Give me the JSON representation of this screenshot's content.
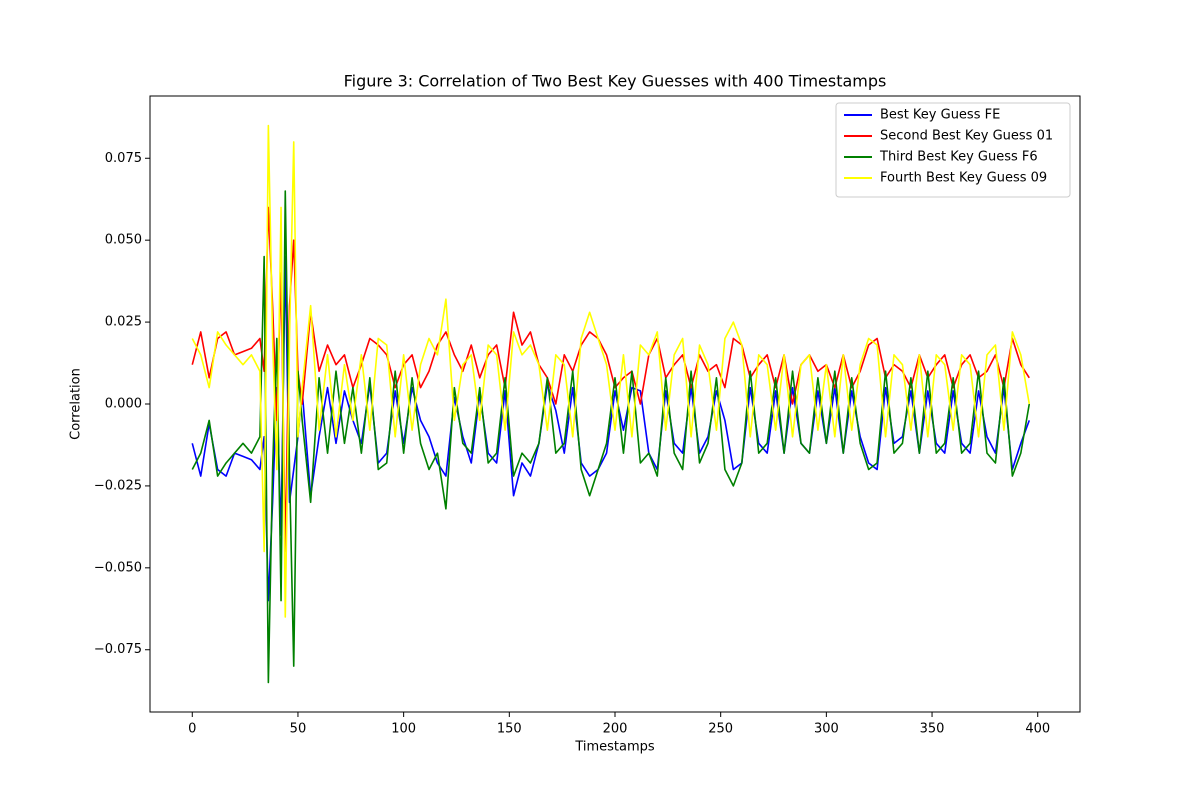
{
  "chart_data": {
    "type": "line",
    "title": "Figure 3: Correlation of Two Best Key Guesses with 400 Timestamps",
    "x_label": "Timestamps",
    "y_label": "Correlation",
    "xlim": [
      -20,
      420
    ],
    "ylim": [
      -0.094,
      0.094
    ],
    "xticks": [
      0,
      50,
      100,
      150,
      200,
      250,
      300,
      350,
      400
    ],
    "yticks": [
      {
        "value": -0.075,
        "label": "−0.075"
      },
      {
        "value": -0.05,
        "label": "−0.050"
      },
      {
        "value": -0.025,
        "label": "−0.025"
      },
      {
        "value": 0,
        "label": "0.000"
      },
      0.025,
      {
        "value": 0.05,
        "label": "0.050"
      },
      0.075
    ],
    "legend": "upper right",
    "x": [
      0,
      4,
      8,
      12,
      16,
      20,
      24,
      28,
      32,
      34,
      36,
      38,
      40,
      42,
      44,
      46,
      48,
      50,
      52,
      56,
      60,
      64,
      68,
      72,
      76,
      80,
      84,
      88,
      92,
      96,
      100,
      104,
      108,
      112,
      116,
      120,
      124,
      128,
      132,
      136,
      140,
      144,
      148,
      152,
      156,
      160,
      164,
      168,
      172,
      176,
      180,
      184,
      188,
      192,
      196,
      200,
      204,
      208,
      212,
      216,
      220,
      224,
      228,
      232,
      236,
      240,
      244,
      248,
      252,
      256,
      260,
      264,
      268,
      272,
      276,
      280,
      284,
      288,
      292,
      296,
      300,
      304,
      308,
      312,
      316,
      320,
      324,
      328,
      332,
      336,
      340,
      344,
      348,
      352,
      356,
      360,
      364,
      368,
      372,
      376,
      380,
      384,
      388,
      392,
      396
    ],
    "series": [
      {
        "name": "Best Key Guess FE",
        "color": "#0000ff",
        "values": [
          -0.012,
          -0.022,
          -0.006,
          -0.02,
          -0.022,
          -0.015,
          -0.016,
          -0.017,
          -0.02,
          -0.01,
          -0.06,
          -0.03,
          0.005,
          -0.04,
          0.045,
          -0.03,
          -0.02,
          -0.01,
          0.004,
          -0.028,
          -0.01,
          0.005,
          -0.012,
          0.004,
          -0.005,
          -0.012,
          0.006,
          -0.018,
          -0.015,
          0.004,
          -0.012,
          0.005,
          -0.005,
          -0.01,
          -0.018,
          -0.022,
          0.002,
          -0.01,
          -0.018,
          0.003,
          -0.015,
          -0.018,
          0.004,
          -0.028,
          -0.018,
          -0.022,
          -0.012,
          0.006,
          -0.002,
          -0.015,
          0.005,
          -0.018,
          -0.022,
          -0.02,
          -0.015,
          0.004,
          -0.008,
          0.005,
          0.004,
          -0.015,
          -0.02,
          0.004,
          -0.012,
          -0.015,
          0.005,
          -0.015,
          -0.01,
          0.004,
          -0.005,
          -0.02,
          -0.018,
          0.005,
          -0.012,
          -0.015,
          0.004,
          -0.015,
          0.005,
          -0.012,
          -0.015,
          0.004,
          -0.012,
          0.005,
          -0.015,
          0.004,
          -0.01,
          -0.018,
          -0.02,
          0.005,
          -0.012,
          -0.01,
          0.004,
          -0.015,
          0.004,
          -0.012,
          -0.015,
          0.004,
          -0.012,
          -0.015,
          0.004,
          -0.01,
          -0.015,
          0.005,
          -0.02,
          -0.012,
          -0.005
        ]
      },
      {
        "name": "Second Best Key Guess 01",
        "color": "#ff0000",
        "values": [
          0.012,
          0.022,
          0.008,
          0.02,
          0.022,
          0.015,
          0.016,
          0.017,
          0.02,
          0.01,
          0.06,
          0.03,
          -0.005,
          0.04,
          -0.045,
          0.03,
          0.05,
          0.01,
          0.0,
          0.028,
          0.01,
          0.018,
          0.012,
          0.015,
          0.005,
          0.012,
          0.02,
          0.018,
          0.015,
          0.005,
          0.012,
          0.015,
          0.005,
          0.01,
          0.018,
          0.022,
          0.015,
          0.01,
          0.018,
          0.008,
          0.015,
          0.018,
          0.005,
          0.028,
          0.018,
          0.022,
          0.012,
          0.008,
          0.0,
          0.015,
          0.01,
          0.018,
          0.022,
          0.02,
          0.015,
          0.005,
          0.008,
          0.01,
          0.0,
          0.015,
          0.02,
          0.008,
          0.012,
          0.015,
          0.005,
          0.015,
          0.01,
          0.012,
          0.005,
          0.02,
          0.018,
          0.008,
          0.012,
          0.015,
          0.005,
          0.015,
          0.0,
          0.012,
          0.015,
          0.01,
          0.012,
          0.005,
          0.015,
          0.005,
          0.01,
          0.018,
          0.02,
          0.008,
          0.012,
          0.01,
          0.005,
          0.015,
          0.008,
          0.012,
          0.015,
          0.005,
          0.012,
          0.015,
          0.008,
          0.01,
          0.015,
          0.005,
          0.02,
          0.012,
          0.008
        ]
      },
      {
        "name": "Third Best Key Guess F6",
        "color": "#008000",
        "values": [
          -0.02,
          -0.015,
          -0.005,
          -0.022,
          -0.018,
          -0.015,
          -0.012,
          -0.015,
          -0.01,
          0.045,
          -0.085,
          -0.02,
          0.02,
          -0.06,
          0.065,
          -0.02,
          -0.08,
          0.01,
          -0.005,
          -0.03,
          0.008,
          -0.015,
          0.01,
          -0.012,
          0.005,
          -0.015,
          0.008,
          -0.02,
          -0.018,
          0.01,
          -0.015,
          0.008,
          -0.012,
          -0.02,
          -0.015,
          -0.032,
          0.005,
          -0.012,
          -0.015,
          0.005,
          -0.018,
          -0.015,
          0.008,
          -0.022,
          -0.015,
          -0.018,
          -0.012,
          0.008,
          -0.015,
          -0.012,
          0.01,
          -0.02,
          -0.028,
          -0.02,
          -0.012,
          0.008,
          -0.015,
          0.01,
          -0.018,
          -0.015,
          -0.022,
          0.008,
          -0.015,
          -0.02,
          0.01,
          -0.018,
          -0.012,
          0.008,
          -0.02,
          -0.025,
          -0.018,
          0.01,
          -0.015,
          -0.012,
          0.008,
          -0.015,
          0.01,
          -0.012,
          -0.015,
          0.008,
          -0.012,
          0.01,
          -0.015,
          0.008,
          -0.012,
          -0.02,
          -0.018,
          0.01,
          -0.015,
          -0.012,
          0.008,
          -0.015,
          0.01,
          -0.015,
          -0.012,
          0.008,
          -0.015,
          -0.012,
          0.01,
          -0.015,
          -0.018,
          0.008,
          -0.022,
          -0.015,
          0.0
        ]
      },
      {
        "name": "Fourth Best Key Guess 09",
        "color": "#ffff00",
        "values": [
          0.02,
          0.015,
          0.005,
          0.022,
          0.018,
          0.015,
          0.012,
          0.015,
          0.01,
          -0.045,
          0.085,
          0.02,
          -0.02,
          0.06,
          -0.065,
          0.02,
          0.08,
          -0.01,
          0.005,
          0.03,
          -0.008,
          0.015,
          -0.01,
          0.012,
          -0.005,
          0.015,
          -0.008,
          0.02,
          0.018,
          -0.01,
          0.015,
          -0.008,
          0.012,
          0.02,
          0.015,
          0.032,
          -0.005,
          0.012,
          0.015,
          -0.005,
          0.018,
          0.015,
          -0.008,
          0.022,
          0.015,
          0.018,
          0.012,
          -0.008,
          0.015,
          0.012,
          -0.01,
          0.02,
          0.028,
          0.02,
          0.012,
          -0.008,
          0.015,
          -0.01,
          0.018,
          0.015,
          0.022,
          -0.008,
          0.015,
          0.02,
          -0.01,
          0.018,
          0.012,
          -0.008,
          0.02,
          0.025,
          0.018,
          -0.01,
          0.015,
          0.012,
          -0.008,
          0.015,
          -0.01,
          0.012,
          0.015,
          -0.008,
          0.012,
          -0.01,
          0.015,
          -0.008,
          0.012,
          0.02,
          0.018,
          -0.01,
          0.015,
          0.012,
          -0.008,
          0.015,
          -0.01,
          0.015,
          0.012,
          -0.008,
          0.015,
          0.012,
          -0.01,
          0.015,
          0.018,
          -0.008,
          0.022,
          0.015,
          0.0
        ]
      }
    ]
  }
}
